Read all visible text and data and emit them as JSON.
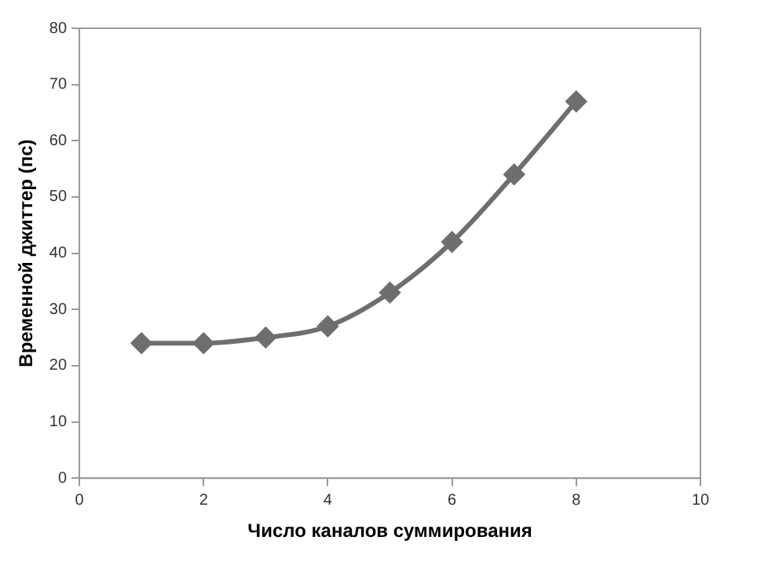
{
  "chart_data": {
    "type": "line",
    "xlabel": "Число каналов суммирования",
    "ylabel": "Временной джиттер (пс)",
    "x": [
      1,
      2,
      3,
      4,
      5,
      6,
      7,
      8
    ],
    "series": [
      {
        "color": "#6e6e6e",
        "values": [
          24,
          24,
          25,
          27,
          33,
          42,
          54,
          67
        ]
      }
    ],
    "xlim": [
      0,
      10
    ],
    "xticks": [
      0,
      2,
      4,
      6,
      8,
      10
    ],
    "ylim": [
      0,
      80
    ],
    "yticks": [
      0,
      10,
      20,
      30,
      40,
      50,
      60,
      70,
      80
    ],
    "grid": false,
    "legend": false,
    "marker": "diamond",
    "line_style": "solid"
  }
}
